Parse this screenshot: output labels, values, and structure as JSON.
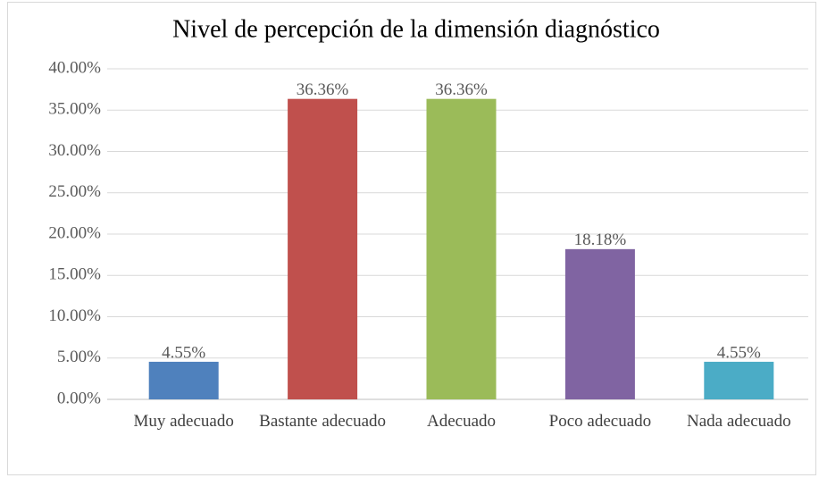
{
  "chart_data": {
    "type": "bar",
    "title": "Nivel de percepción de la dimensión diagnóstico",
    "categories": [
      "Muy adecuado",
      "Bastante adecuado",
      "Adecuado",
      "Poco adecuado",
      "Nada adecuado"
    ],
    "values": [
      4.55,
      36.36,
      36.36,
      18.18,
      4.55
    ],
    "value_labels": [
      "4.55%",
      "36.36%",
      "36.36%",
      "18.18%",
      "4.55%"
    ],
    "colors": [
      "#4f81bd",
      "#c0504d",
      "#9bbb59",
      "#8064a2",
      "#4bacc6"
    ],
    "ylim": [
      0,
      40
    ],
    "yticks": [
      {
        "value": 0,
        "label": "0.00%"
      },
      {
        "value": 5,
        "label": "5.00%"
      },
      {
        "value": 10,
        "label": "10.00%"
      },
      {
        "value": 15,
        "label": "15.00%"
      },
      {
        "value": 20,
        "label": "20.00%"
      },
      {
        "value": 25,
        "label": "25.00%"
      },
      {
        "value": 30,
        "label": "30.00%"
      },
      {
        "value": 35,
        "label": "35.00%"
      },
      {
        "value": 40,
        "label": "40.00%"
      }
    ],
    "grid": true
  }
}
